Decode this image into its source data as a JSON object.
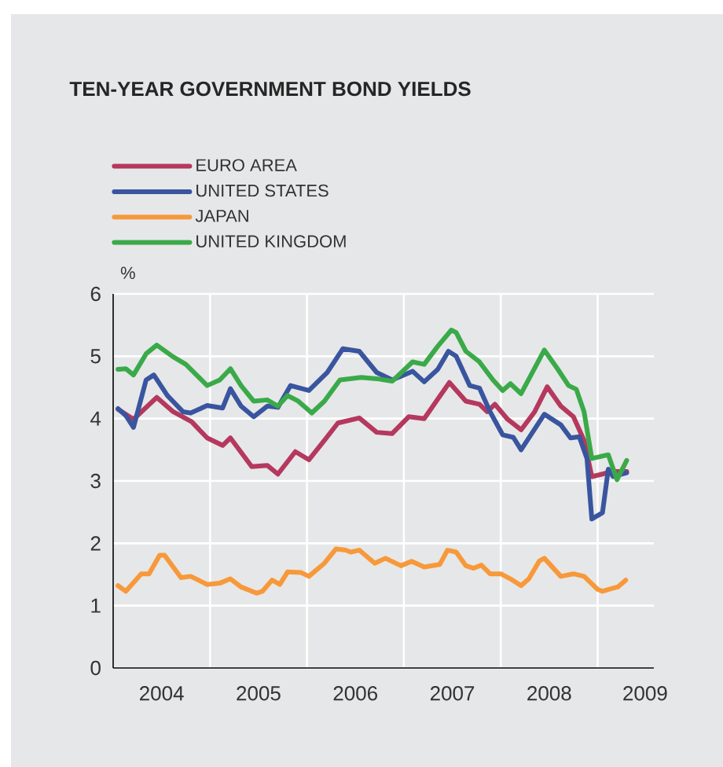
{
  "chart_data": {
    "type": "line",
    "title": "TEN-YEAR GOVERNMENT BOND YIELDS",
    "ylabel": "%",
    "xlim": [
      2004,
      2009.58
    ],
    "xticks": [
      {
        "value": 2004.5,
        "label": "2004"
      },
      {
        "value": 2005.5,
        "label": "2005"
      },
      {
        "value": 2006.5,
        "label": "2006"
      },
      {
        "value": 2007.5,
        "label": "2007"
      },
      {
        "value": 2008.5,
        "label": "2008"
      },
      {
        "value": 2009.49,
        "label": "2009"
      },
      {
        "value": 2005,
        "label": null
      },
      {
        "value": 2006,
        "label": null
      },
      {
        "value": 2007,
        "label": null
      },
      {
        "value": 2008,
        "label": null
      },
      {
        "value": 2009,
        "label": null
      }
    ],
    "ylim": [
      0,
      6
    ],
    "yticks": [
      0,
      1,
      2,
      3,
      4,
      5,
      6
    ],
    "grid": true,
    "legend": "top left",
    "marker": "none",
    "line_style": "solid",
    "series": [
      {
        "name": "EURO AREA",
        "color": "#b5385e",
        "x": [
          2004.05,
          2004.21,
          2004.45,
          2004.62,
          2004.81,
          2004.97,
          2005.13,
          2005.21,
          2005.43,
          2005.59,
          2005.7,
          2005.88,
          2006.02,
          2006.18,
          2006.32,
          2006.54,
          2006.72,
          2006.88,
          2007.05,
          2007.21,
          2007.47,
          2007.64,
          2007.78,
          2007.86,
          2007.94,
          2008.07,
          2008.21,
          2008.35,
          2008.48,
          2008.62,
          2008.75,
          2008.86,
          2008.94,
          2009.05,
          2009.13,
          2009.3
        ],
        "values": [
          4.15,
          3.99,
          4.34,
          4.11,
          3.95,
          3.69,
          3.57,
          3.69,
          3.23,
          3.25,
          3.11,
          3.47,
          3.34,
          3.65,
          3.93,
          4.01,
          3.78,
          3.76,
          4.03,
          4.0,
          4.58,
          4.28,
          4.23,
          4.11,
          4.23,
          3.99,
          3.82,
          4.11,
          4.51,
          4.2,
          4.03,
          3.65,
          3.07,
          3.11,
          3.15,
          3.15
        ]
      },
      {
        "name": "UNITED STATES",
        "color": "#3a559f",
        "x": [
          2004.05,
          2004.13,
          2004.21,
          2004.34,
          2004.42,
          2004.56,
          2004.72,
          2004.8,
          2004.97,
          2005.13,
          2005.21,
          2005.32,
          2005.45,
          2005.59,
          2005.7,
          2005.83,
          2006.02,
          2006.21,
          2006.37,
          2006.54,
          2006.72,
          2006.88,
          2007.09,
          2007.21,
          2007.35,
          2007.46,
          2007.54,
          2007.68,
          2007.78,
          2007.89,
          2008.02,
          2008.13,
          2008.21,
          2008.45,
          2008.62,
          2008.72,
          2008.81,
          2008.89,
          2008.94,
          2009.05,
          2009.11,
          2009.16,
          2009.3
        ],
        "values": [
          4.16,
          4.05,
          3.86,
          4.62,
          4.7,
          4.37,
          4.11,
          4.09,
          4.21,
          4.17,
          4.48,
          4.2,
          4.03,
          4.2,
          4.18,
          4.53,
          4.45,
          4.74,
          5.12,
          5.08,
          4.74,
          4.62,
          4.76,
          4.59,
          4.79,
          5.08,
          5.0,
          4.53,
          4.49,
          4.11,
          3.74,
          3.7,
          3.5,
          4.07,
          3.9,
          3.69,
          3.71,
          3.36,
          2.39,
          2.49,
          3.19,
          3.07,
          3.13
        ]
      },
      {
        "name": "JAPAN",
        "color": "#f7993a",
        "x": [
          2004.05,
          2004.13,
          2004.29,
          2004.37,
          2004.48,
          2004.53,
          2004.7,
          2004.8,
          2004.97,
          2005.1,
          2005.21,
          2005.32,
          2005.48,
          2005.54,
          2005.64,
          2005.72,
          2005.8,
          2005.94,
          2006.02,
          2006.18,
          2006.3,
          2006.4,
          2006.45,
          2006.54,
          2006.7,
          2006.81,
          2006.97,
          2007.08,
          2007.21,
          2007.37,
          2007.45,
          2007.54,
          2007.64,
          2007.72,
          2007.8,
          2007.89,
          2008.0,
          2008.1,
          2008.21,
          2008.29,
          2008.4,
          2008.45,
          2008.62,
          2008.75,
          2008.86,
          2009.0,
          2009.05,
          2009.16,
          2009.21,
          2009.29
        ],
        "values": [
          1.32,
          1.23,
          1.51,
          1.51,
          1.81,
          1.81,
          1.45,
          1.47,
          1.34,
          1.36,
          1.43,
          1.3,
          1.2,
          1.23,
          1.41,
          1.34,
          1.54,
          1.53,
          1.47,
          1.68,
          1.91,
          1.89,
          1.86,
          1.89,
          1.68,
          1.76,
          1.64,
          1.71,
          1.62,
          1.66,
          1.89,
          1.86,
          1.64,
          1.6,
          1.65,
          1.51,
          1.51,
          1.43,
          1.32,
          1.43,
          1.72,
          1.76,
          1.47,
          1.51,
          1.47,
          1.26,
          1.23,
          1.28,
          1.3,
          1.41
        ]
      },
      {
        "name": "UNITED KINGDOM",
        "color": "#3aaa49",
        "x": [
          2004.05,
          2004.13,
          2004.21,
          2004.34,
          2004.45,
          2004.62,
          2004.75,
          2004.86,
          2004.97,
          2005.1,
          2005.21,
          2005.32,
          2005.45,
          2005.59,
          2005.7,
          2005.8,
          2005.91,
          2006.05,
          2006.18,
          2006.34,
          2006.56,
          2006.72,
          2006.88,
          2007.09,
          2007.21,
          2007.35,
          2007.49,
          2007.54,
          2007.64,
          2007.78,
          2007.92,
          2008.02,
          2008.1,
          2008.21,
          2008.45,
          2008.59,
          2008.7,
          2008.78,
          2008.86,
          2008.94,
          2009.11,
          2009.2,
          2009.3
        ],
        "values": [
          4.79,
          4.8,
          4.7,
          5.04,
          5.18,
          4.99,
          4.87,
          4.7,
          4.53,
          4.62,
          4.8,
          4.53,
          4.28,
          4.3,
          4.2,
          4.37,
          4.28,
          4.09,
          4.28,
          4.62,
          4.66,
          4.64,
          4.6,
          4.91,
          4.87,
          5.16,
          5.42,
          5.38,
          5.08,
          4.91,
          4.62,
          4.45,
          4.56,
          4.4,
          5.1,
          4.79,
          4.53,
          4.47,
          4.11,
          3.36,
          3.42,
          3.02,
          3.33
        ]
      }
    ]
  }
}
